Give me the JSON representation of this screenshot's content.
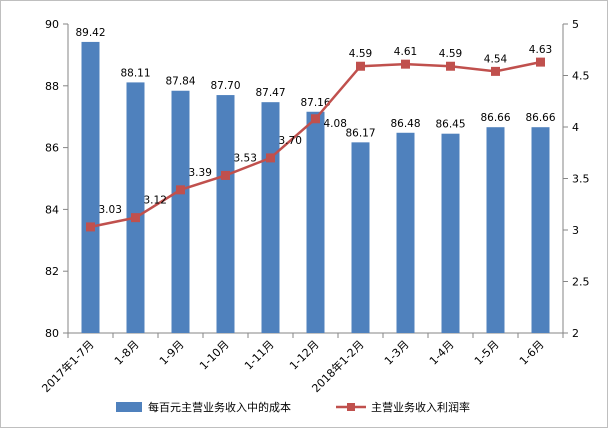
{
  "chart_data": {
    "type": "bar+line",
    "categories": [
      "2017年1-7月",
      "1-8月",
      "1-9月",
      "1-10月",
      "1-11月",
      "1-12月",
      "2018年1-2月",
      "1-3月",
      "1-4月",
      "1-5月",
      "1-6月"
    ],
    "series": [
      {
        "name": "每百元主营业务收入中的成本",
        "type": "bar",
        "axis": "left",
        "color": "#4f81bd",
        "values": [
          89.42,
          88.11,
          87.84,
          87.7,
          87.47,
          87.16,
          86.17,
          86.48,
          86.45,
          86.66,
          86.66
        ],
        "labels": [
          "89.42",
          "88.11",
          "87.84",
          "87.70",
          "87.47",
          "87.16",
          "86.17",
          "86.48",
          "86.45",
          "86.66",
          "86.66"
        ]
      },
      {
        "name": "主营业务收入利润率",
        "type": "line",
        "axis": "right",
        "color": "#c0504d",
        "values": [
          3.03,
          3.12,
          3.39,
          3.53,
          3.7,
          4.08,
          4.59,
          4.61,
          4.59,
          4.54,
          4.63
        ],
        "labels": [
          "3.03",
          "3.12",
          "3.39",
          "3.53",
          "3.70",
          "4.08",
          "4.59",
          "4.61",
          "4.59",
          "4.54",
          "4.63"
        ]
      }
    ],
    "left_axis": {
      "ylim": [
        80,
        90
      ],
      "ticks": [
        "80",
        "82",
        "84",
        "86",
        "88",
        "90"
      ]
    },
    "right_axis": {
      "ylim": [
        2,
        5
      ],
      "ticks": [
        "2",
        "2.5",
        "3",
        "3.5",
        "4",
        "4.5",
        "5"
      ]
    },
    "grid": false,
    "legend": "bottom"
  }
}
